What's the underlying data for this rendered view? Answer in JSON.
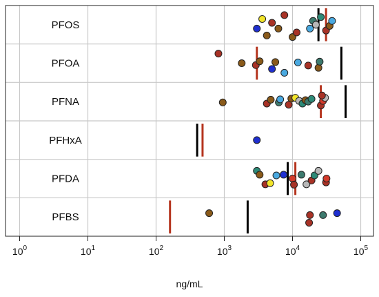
{
  "chart_data": {
    "type": "scatter",
    "title": "",
    "xlabel": "ng/mL",
    "ylabel": "",
    "x_scale": "log",
    "xlim": [
      0.5,
      150000
    ],
    "x_ticks": [
      {
        "value": 1,
        "base": "10",
        "exp": "0"
      },
      {
        "value": 10,
        "base": "10",
        "exp": "1"
      },
      {
        "value": 100,
        "base": "10",
        "exp": "2"
      },
      {
        "value": 1000,
        "base": "10",
        "exp": "3"
      },
      {
        "value": 10000,
        "base": "10",
        "exp": "4"
      },
      {
        "value": 100000,
        "base": "10",
        "exp": "5"
      }
    ],
    "grid": true,
    "categories": [
      "PFOS",
      "PFOA",
      "PFNA",
      "PFHxA",
      "PFDA",
      "PFBS"
    ],
    "reference_lines": [
      {
        "category": "PFOS",
        "color": "#000000",
        "value": 24000
      },
      {
        "category": "PFOS",
        "color": "#b5341e",
        "value": 31000
      },
      {
        "category": "PFOA",
        "color": "#000000",
        "value": 52000
      },
      {
        "category": "PFOA",
        "color": "#b5341e",
        "value": 3000
      },
      {
        "category": "PFNA",
        "color": "#000000",
        "value": 60000
      },
      {
        "category": "PFNA",
        "color": "#b5341e",
        "value": 26000
      },
      {
        "category": "PFHxA",
        "color": "#000000",
        "value": 400
      },
      {
        "category": "PFHxA",
        "color": "#b5341e",
        "value": 480
      },
      {
        "category": "PFDA",
        "color": "#000000",
        "value": 8500
      },
      {
        "category": "PFDA",
        "color": "#b5341e",
        "value": 11000
      },
      {
        "category": "PFBS",
        "color": "#000000",
        "value": 2200
      },
      {
        "category": "PFBS",
        "color": "#b5341e",
        "value": 160
      }
    ],
    "points": [
      {
        "category": "PFOS",
        "value": 3000,
        "jitter": 0.1,
        "color": "#1f2fd0"
      },
      {
        "category": "PFOS",
        "value": 3600,
        "jitter": -0.15,
        "color": "#f2e52a"
      },
      {
        "category": "PFOS",
        "value": 4200,
        "jitter": 0.28,
        "color": "#8a5a1a"
      },
      {
        "category": "PFOS",
        "value": 5000,
        "jitter": -0.05,
        "color": "#a83226"
      },
      {
        "category": "PFOS",
        "value": 6200,
        "jitter": 0.1,
        "color": "#8a5a1a"
      },
      {
        "category": "PFOS",
        "value": 7600,
        "jitter": -0.25,
        "color": "#a83226"
      },
      {
        "category": "PFOS",
        "value": 10000,
        "jitter": 0.32,
        "color": "#8a5a1a"
      },
      {
        "category": "PFOS",
        "value": 11500,
        "jitter": 0.2,
        "color": "#a83226"
      },
      {
        "category": "PFOS",
        "value": 18000,
        "jitter": 0.1,
        "color": "#4aa9e0"
      },
      {
        "category": "PFOS",
        "value": 20000,
        "jitter": -0.1,
        "color": "#3d7a6e"
      },
      {
        "category": "PFOS",
        "value": 22000,
        "jitter": 0.0,
        "color": "#b8b8b8"
      },
      {
        "category": "PFOS",
        "value": 26000,
        "jitter": -0.2,
        "color": "#2d8a77"
      },
      {
        "category": "PFOS",
        "value": 31000,
        "jitter": 0.15,
        "color": "#a83226"
      },
      {
        "category": "PFOS",
        "value": 35000,
        "jitter": 0.03,
        "color": "#8a5a1a"
      },
      {
        "category": "PFOS",
        "value": 38000,
        "jitter": -0.1,
        "color": "#4aa9e0"
      },
      {
        "category": "PFOA",
        "value": 820,
        "jitter": -0.25,
        "color": "#a83226"
      },
      {
        "category": "PFOA",
        "value": 1800,
        "jitter": 0.0,
        "color": "#8a5a1a"
      },
      {
        "category": "PFOA",
        "value": 2900,
        "jitter": 0.05,
        "color": "#a83226"
      },
      {
        "category": "PFOA",
        "value": 3300,
        "jitter": -0.05,
        "color": "#8a5a1a"
      },
      {
        "category": "PFOA",
        "value": 5000,
        "jitter": 0.15,
        "color": "#1f2fd0"
      },
      {
        "category": "PFOA",
        "value": 5600,
        "jitter": -0.03,
        "color": "#8a5a1a"
      },
      {
        "category": "PFOA",
        "value": 7600,
        "jitter": 0.25,
        "color": "#4aa9e0"
      },
      {
        "category": "PFOA",
        "value": 12000,
        "jitter": -0.02,
        "color": "#4aa9e0"
      },
      {
        "category": "PFOA",
        "value": 17000,
        "jitter": 0.06,
        "color": "#a83226"
      },
      {
        "category": "PFOA",
        "value": 24000,
        "jitter": 0.12,
        "color": "#8a5a1a"
      },
      {
        "category": "PFOA",
        "value": 25000,
        "jitter": -0.04,
        "color": "#3d7a6e"
      },
      {
        "category": "PFNA",
        "value": 950,
        "jitter": 0.02,
        "color": "#8a5a1a"
      },
      {
        "category": "PFNA",
        "value": 4200,
        "jitter": 0.05,
        "color": "#a83226"
      },
      {
        "category": "PFNA",
        "value": 4800,
        "jitter": -0.05,
        "color": "#8a5a1a"
      },
      {
        "category": "PFNA",
        "value": 6300,
        "jitter": 0.02,
        "color": "#3d7a6e"
      },
      {
        "category": "PFNA",
        "value": 6600,
        "jitter": -0.06,
        "color": "#4aa9e0"
      },
      {
        "category": "PFNA",
        "value": 8800,
        "jitter": 0.08,
        "color": "#a83226"
      },
      {
        "category": "PFNA",
        "value": 9600,
        "jitter": -0.08,
        "color": "#8a5a1a"
      },
      {
        "category": "PFNA",
        "value": 11000,
        "jitter": -0.1,
        "color": "#f2e52a"
      },
      {
        "category": "PFNA",
        "value": 12500,
        "jitter": -0.02,
        "color": "#b8b8b8"
      },
      {
        "category": "PFNA",
        "value": 14000,
        "jitter": 0.05,
        "color": "#2d8a77"
      },
      {
        "category": "PFNA",
        "value": 15500,
        "jitter": -0.04,
        "color": "#8a5a1a"
      },
      {
        "category": "PFNA",
        "value": 17000,
        "jitter": 0.0,
        "color": "#3d7a6e"
      },
      {
        "category": "PFNA",
        "value": 19000,
        "jitter": -0.07,
        "color": "#2d8a77"
      },
      {
        "category": "PFNA",
        "value": 26000,
        "jitter": 0.1,
        "color": "#a83226"
      },
      {
        "category": "PFNA",
        "value": 28000,
        "jitter": -0.02,
        "color": "#d33b2b"
      },
      {
        "category": "PFNA",
        "value": 30000,
        "jitter": -0.1,
        "color": "#b8b8b8"
      },
      {
        "category": "PFNA",
        "value": 27000,
        "jitter": -0.16,
        "color": "#a83226"
      },
      {
        "category": "PFHxA",
        "value": 3000,
        "jitter": 0.0,
        "color": "#1f2fd0"
      },
      {
        "category": "PFDA",
        "value": 3000,
        "jitter": -0.2,
        "color": "#2d8a77"
      },
      {
        "category": "PFDA",
        "value": 3300,
        "jitter": -0.1,
        "color": "#8a5a1a"
      },
      {
        "category": "PFDA",
        "value": 4000,
        "jitter": 0.15,
        "color": "#a83226"
      },
      {
        "category": "PFDA",
        "value": 4700,
        "jitter": 0.12,
        "color": "#f2e52a"
      },
      {
        "category": "PFDA",
        "value": 5800,
        "jitter": -0.08,
        "color": "#4aa9e0"
      },
      {
        "category": "PFDA",
        "value": 7400,
        "jitter": -0.1,
        "color": "#1f2fd0"
      },
      {
        "category": "PFDA",
        "value": 10000,
        "jitter": 0.0,
        "color": "#d33b2b"
      },
      {
        "category": "PFDA",
        "value": 10500,
        "jitter": 0.16,
        "color": "#a83226"
      },
      {
        "category": "PFDA",
        "value": 13500,
        "jitter": -0.1,
        "color": "#3d7a6e"
      },
      {
        "category": "PFDA",
        "value": 16000,
        "jitter": 0.15,
        "color": "#b8b8b8"
      },
      {
        "category": "PFDA",
        "value": 19000,
        "jitter": 0.05,
        "color": "#a83226"
      },
      {
        "category": "PFDA",
        "value": 21000,
        "jitter": -0.08,
        "color": "#2d8a77"
      },
      {
        "category": "PFDA",
        "value": 24000,
        "jitter": -0.2,
        "color": "#b8b8b8"
      },
      {
        "category": "PFDA",
        "value": 31000,
        "jitter": 0.1,
        "color": "#a83226"
      },
      {
        "category": "PFDA",
        "value": 31500,
        "jitter": 0.0,
        "color": "#d33b2b"
      },
      {
        "category": "PFBS",
        "value": 600,
        "jitter": -0.1,
        "color": "#8a5a1a"
      },
      {
        "category": "PFBS",
        "value": 17500,
        "jitter": 0.15,
        "color": "#a83226"
      },
      {
        "category": "PFBS",
        "value": 18000,
        "jitter": -0.05,
        "color": "#a83226"
      },
      {
        "category": "PFBS",
        "value": 28000,
        "jitter": -0.05,
        "color": "#3d7a6e"
      },
      {
        "category": "PFBS",
        "value": 45000,
        "jitter": -0.1,
        "color": "#1f2fd0"
      }
    ]
  }
}
